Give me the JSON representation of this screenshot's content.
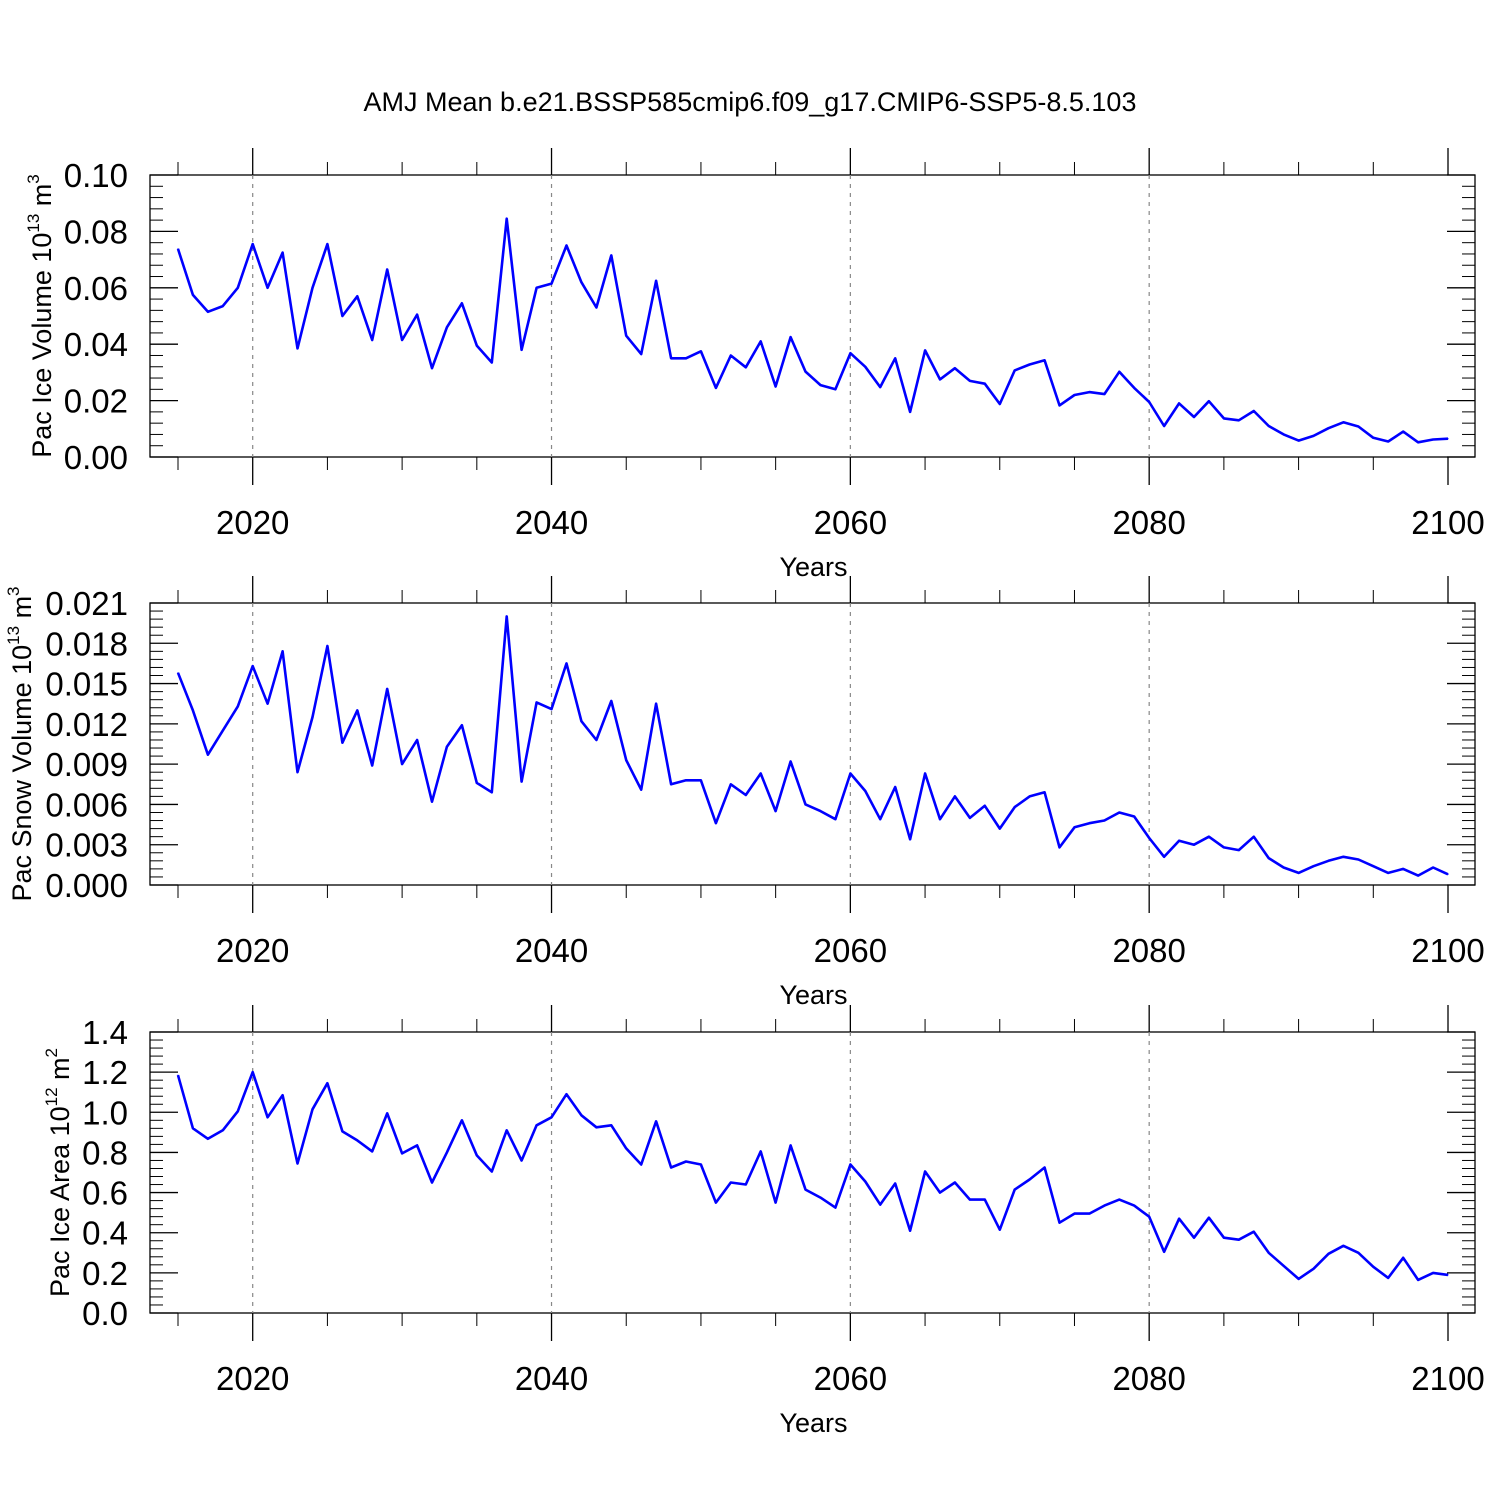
{
  "title": "AMJ Mean b.e21.BSSP585cmip6.f09_g17.CMIP6-SSP5-8.5.103",
  "chart_data": [
    {
      "type": "line",
      "ylabel": {
        "main": "Pac Ice Volume 10",
        "sup": "13",
        "unit": " m",
        "unit_sup": "3"
      },
      "xlabel": "Years",
      "xlim": [
        2015,
        2100
      ],
      "ylim": [
        0.0,
        0.1
      ],
      "x_ticks": [
        2020,
        2040,
        2060,
        2080,
        2100
      ],
      "x_tick_labels": [
        "2020",
        "2040",
        "2060",
        "2080",
        "2100"
      ],
      "y_ticks": [
        0.0,
        0.02,
        0.04,
        0.06,
        0.08,
        0.1
      ],
      "y_tick_labels": [
        "0.00",
        "0.02",
        "0.04",
        "0.06",
        "0.08",
        "0.10"
      ],
      "color": "#0000ff",
      "x_start": 2015,
      "values": [
        0.0738,
        0.0575,
        0.0515,
        0.0535,
        0.06,
        0.0755,
        0.06,
        0.0725,
        0.0385,
        0.06,
        0.0755,
        0.05,
        0.057,
        0.0415,
        0.0665,
        0.0415,
        0.0505,
        0.0315,
        0.046,
        0.0545,
        0.0395,
        0.0335,
        0.0845,
        0.038,
        0.06,
        0.0615,
        0.075,
        0.062,
        0.053,
        0.0715,
        0.043,
        0.0365,
        0.0625,
        0.035,
        0.035,
        0.0375,
        0.0245,
        0.036,
        0.0318,
        0.041,
        0.025,
        0.0425,
        0.0303,
        0.0255,
        0.024,
        0.0368,
        0.032,
        0.0248,
        0.035,
        0.016,
        0.0378,
        0.0275,
        0.0315,
        0.027,
        0.026,
        0.0188,
        0.0307,
        0.0328,
        0.0343,
        0.0183,
        0.022,
        0.023,
        0.0223,
        0.0302,
        0.0245,
        0.0195,
        0.011,
        0.019,
        0.0142,
        0.0198,
        0.0137,
        0.013,
        0.0163,
        0.011,
        0.008,
        0.0058,
        0.0075,
        0.0102,
        0.0123,
        0.0108,
        0.0068,
        0.0055,
        0.009,
        0.0052,
        0.0062,
        0.0065
      ]
    },
    {
      "type": "line",
      "ylabel": {
        "main": "Pac Snow Volume 10",
        "sup": "13",
        "unit": " m",
        "unit_sup": "3"
      },
      "xlabel": "Years",
      "xlim": [
        2015,
        2100
      ],
      "ylim": [
        0.0,
        0.021
      ],
      "x_ticks": [
        2020,
        2040,
        2060,
        2080,
        2100
      ],
      "x_tick_labels": [
        "2020",
        "2040",
        "2060",
        "2080",
        "2100"
      ],
      "y_ticks": [
        0.0,
        0.003,
        0.006,
        0.009,
        0.012,
        0.015,
        0.018,
        0.021
      ],
      "y_tick_labels": [
        "0.000",
        "0.003",
        "0.006",
        "0.009",
        "0.012",
        "0.015",
        "0.018",
        "0.021"
      ],
      "color": "#0000ff",
      "x_start": 2015,
      "values": [
        0.0158,
        0.013,
        0.0097,
        0.0115,
        0.0133,
        0.0163,
        0.0135,
        0.0174,
        0.0084,
        0.0125,
        0.0178,
        0.0106,
        0.013,
        0.0089,
        0.0146,
        0.009,
        0.0108,
        0.0062,
        0.0103,
        0.0119,
        0.0076,
        0.0069,
        0.02,
        0.0077,
        0.0136,
        0.0131,
        0.0165,
        0.0122,
        0.0108,
        0.0137,
        0.0093,
        0.0071,
        0.0135,
        0.0075,
        0.0078,
        0.0078,
        0.0046,
        0.0075,
        0.0067,
        0.0083,
        0.0055,
        0.0092,
        0.006,
        0.0055,
        0.0049,
        0.0083,
        0.007,
        0.0049,
        0.0073,
        0.0034,
        0.0083,
        0.0049,
        0.0066,
        0.005,
        0.0059,
        0.0042,
        0.0058,
        0.0066,
        0.0069,
        0.0028,
        0.0043,
        0.0046,
        0.0048,
        0.0054,
        0.0051,
        0.0035,
        0.0021,
        0.0033,
        0.003,
        0.0036,
        0.0028,
        0.0026,
        0.0036,
        0.002,
        0.0013,
        0.0009,
        0.0014,
        0.0018,
        0.0021,
        0.0019,
        0.0014,
        0.0009,
        0.0012,
        0.0007,
        0.0013,
        0.0008
      ]
    },
    {
      "type": "line",
      "ylabel": {
        "main": "Pac Ice Area 10",
        "sup": "12",
        "unit": " m",
        "unit_sup": "2"
      },
      "xlabel": "Years",
      "xlim": [
        2015,
        2100
      ],
      "ylim": [
        0.0,
        1.4
      ],
      "x_ticks": [
        2020,
        2040,
        2060,
        2080,
        2100
      ],
      "x_tick_labels": [
        "2020",
        "2040",
        "2060",
        "2080",
        "2100"
      ],
      "y_ticks": [
        0.0,
        0.2,
        0.4,
        0.6,
        0.8,
        1.0,
        1.2,
        1.4
      ],
      "y_tick_labels": [
        "0.0",
        "0.2",
        "0.4",
        "0.6",
        "0.8",
        "1.0",
        "1.2",
        "1.4"
      ],
      "color": "#0000ff",
      "x_start": 2015,
      "values": [
        1.185,
        0.92,
        0.868,
        0.91,
        1.005,
        1.2,
        0.975,
        1.085,
        0.745,
        1.015,
        1.145,
        0.905,
        0.86,
        0.805,
        0.995,
        0.795,
        0.835,
        0.65,
        0.8,
        0.96,
        0.785,
        0.705,
        0.91,
        0.76,
        0.935,
        0.975,
        1.09,
        0.985,
        0.925,
        0.935,
        0.82,
        0.74,
        0.955,
        0.725,
        0.755,
        0.74,
        0.55,
        0.65,
        0.64,
        0.805,
        0.55,
        0.835,
        0.615,
        0.575,
        0.525,
        0.74,
        0.655,
        0.54,
        0.645,
        0.41,
        0.705,
        0.6,
        0.65,
        0.565,
        0.565,
        0.415,
        0.615,
        0.665,
        0.725,
        0.45,
        0.495,
        0.495,
        0.535,
        0.565,
        0.535,
        0.48,
        0.305,
        0.47,
        0.375,
        0.475,
        0.375,
        0.365,
        0.405,
        0.3,
        0.235,
        0.17,
        0.22,
        0.295,
        0.335,
        0.3,
        0.23,
        0.175,
        0.275,
        0.165,
        0.2,
        0.19
      ]
    }
  ]
}
